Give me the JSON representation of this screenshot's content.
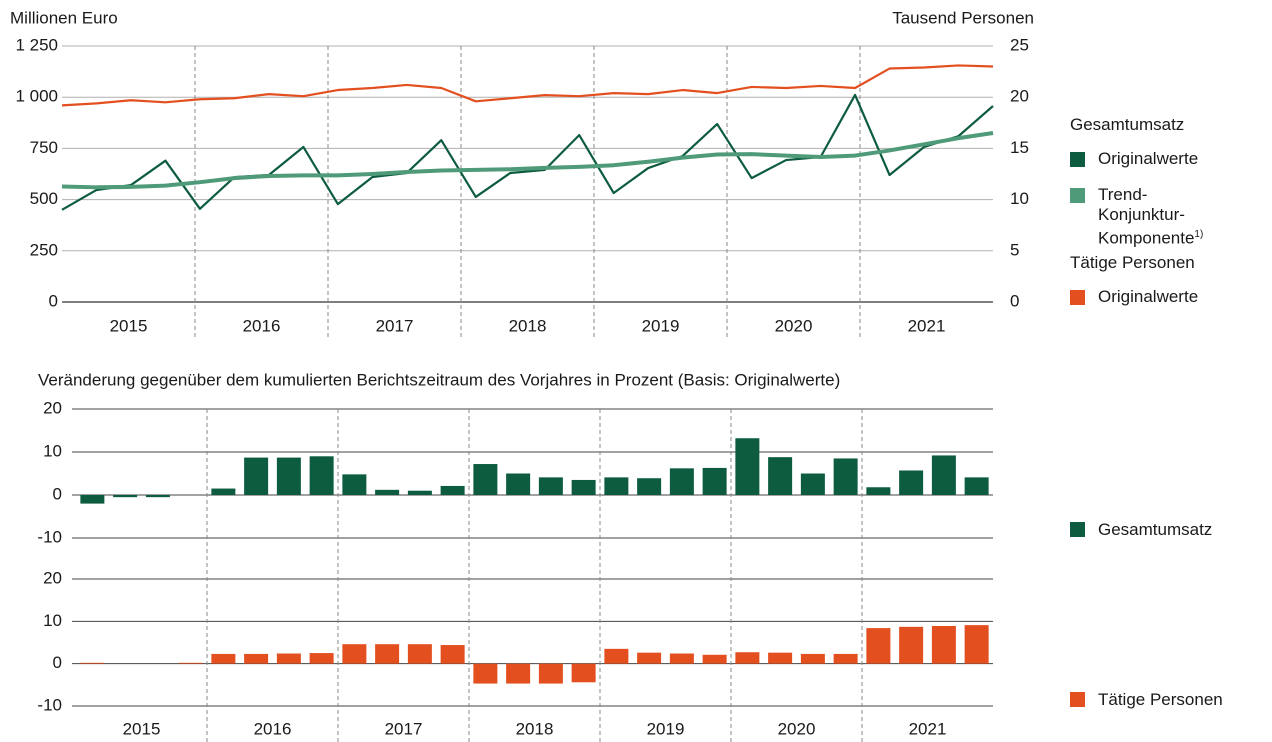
{
  "chart_data": [
    {
      "type": "line",
      "y_label": "Millionen Euro",
      "y2_label": "Tausend Personen",
      "categories": [
        "2015",
        null,
        null,
        null,
        "2016",
        null,
        null,
        null,
        "2017",
        null,
        null,
        null,
        "2018",
        null,
        null,
        null,
        "2019",
        null,
        null,
        null,
        "2020",
        null,
        null,
        null,
        "2021",
        null,
        null,
        null
      ],
      "ylim": [
        0,
        1250
      ],
      "yticks": [
        0,
        250,
        500,
        750,
        {
          "value": 1000,
          "label": "1 000"
        },
        {
          "value": 1250,
          "label": "1 250"
        }
      ],
      "y2lim": [
        0,
        25
      ],
      "y2ticks": [
        0,
        5,
        10,
        15,
        20,
        25
      ],
      "series": [
        {
          "group": "Gesamtumsatz",
          "name": "Originalwerte",
          "color": "#0d5c3f",
          "values": [
            450,
            547,
            571,
            690,
            455,
            610,
            620,
            757,
            478,
            610,
            630,
            790,
            513,
            630,
            645,
            815,
            532,
            654,
            713,
            869,
            605,
            693,
            708,
            1011,
            620,
            757,
            810,
            957
          ]
        },
        {
          "group": "Gesamtumsatz",
          "name": "Trend-Konjunktur-Komponente",
          "footnote": "1)",
          "color": "#4f9a78",
          "values": [
            564,
            560,
            562,
            568,
            585,
            605,
            615,
            618,
            618,
            625,
            635,
            642,
            645,
            648,
            655,
            660,
            668,
            685,
            705,
            720,
            722,
            715,
            708,
            715,
            740,
            770,
            800,
            825
          ]
        },
        {
          "group": "Tätige Personen",
          "name": "Originalwerte",
          "color": "#e34f1f",
          "axis": "y2",
          "values": [
            19.2,
            19.4,
            19.7,
            19.5,
            19.8,
            19.9,
            20.3,
            20.1,
            20.7,
            20.9,
            21.2,
            20.9,
            19.6,
            19.9,
            20.2,
            20.1,
            20.4,
            20.3,
            20.7,
            20.4,
            21.0,
            20.9,
            21.1,
            20.9,
            22.8,
            22.9,
            23.1,
            23.0
          ]
        }
      ]
    },
    {
      "type": "bar",
      "title": "Veränderung gegenüber dem kumulierten Berichtszeitraum des Vorjahres in Prozent (Basis: Originalwerte)",
      "ylim": [
        -10,
        20
      ],
      "yticks": [
        -10,
        0,
        10,
        20
      ],
      "series": [
        {
          "name": "Gesamtumsatz",
          "color": "#0d5c3f",
          "values": [
            -2,
            -0.5,
            -0.5,
            0,
            1.5,
            8.7,
            8.7,
            9,
            4.8,
            1.2,
            1.0,
            2.1,
            7.2,
            5.0,
            4.1,
            3.5,
            4.1,
            3.9,
            6.2,
            6.3,
            13.2,
            8.8,
            5.0,
            8.5,
            1.8,
            5.7,
            9.2,
            4.1
          ]
        }
      ]
    },
    {
      "type": "bar",
      "categories": [
        "2015",
        null,
        null,
        null,
        "2016",
        null,
        null,
        null,
        "2017",
        null,
        null,
        null,
        "2018",
        null,
        null,
        null,
        "2019",
        null,
        null,
        null,
        "2020",
        null,
        null,
        null,
        "2021",
        null,
        null,
        null
      ],
      "ylim": [
        -10,
        20
      ],
      "yticks": [
        -10,
        0,
        10,
        20
      ],
      "series": [
        {
          "name": "Tätige Personen",
          "color": "#e34f1f",
          "values": [
            0.2,
            0,
            0,
            0.2,
            2.3,
            2.3,
            2.4,
            2.5,
            4.6,
            4.6,
            4.6,
            4.4,
            -4.7,
            -4.7,
            -4.7,
            -4.4,
            3.5,
            2.6,
            2.4,
            2.1,
            2.7,
            2.6,
            2.3,
            2.3,
            8.4,
            8.7,
            8.9,
            9.1
          ]
        }
      ]
    }
  ]
}
